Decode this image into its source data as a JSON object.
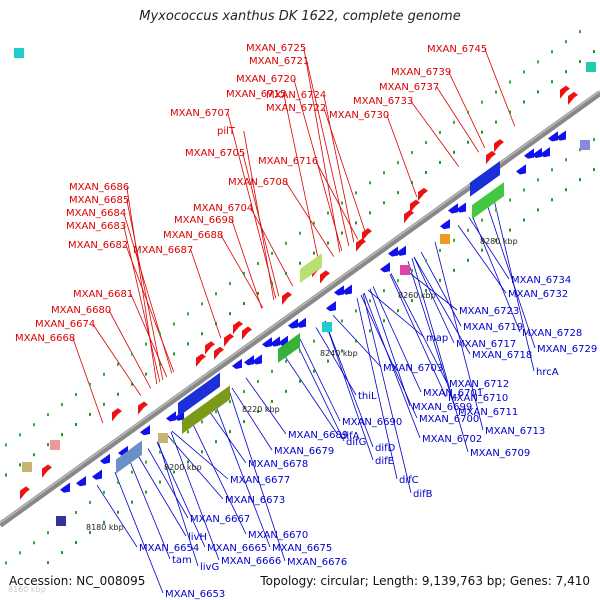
{
  "header": {
    "title": "Myxococcus xanthus DK 1622, complete genome"
  },
  "footer": {
    "accession": "Accession: NC_008095",
    "topology": "Topology: circular; Length: 9,139,763 bp; Genes: 7,410"
  },
  "scale": {
    "ticks": [
      "8180 kbp",
      "8200 kbp",
      "8220 kbp",
      "8240 kbp",
      "8260 kbp",
      "8280 kbp"
    ],
    "faded_tick": "8160 kbp"
  },
  "colors": {
    "forward_strand": "#ee1111",
    "reverse_strand": "#1111ee",
    "backbone": "#888888",
    "label_forward": "#dd0000",
    "label_reverse": "#0000cc"
  },
  "forward_labels": [
    "MXAN_6745",
    "MXAN_6739",
    "MXAN_6737",
    "MXAN_6733",
    "MXAN_6730",
    "MXAN_6725",
    "MXAN_6721",
    "MXAN_6720",
    "MXAN_6724",
    "MXAN_6715",
    "MXAN_6722",
    "MXAN_6707",
    "pilT",
    "MXAN_6705",
    "MXAN_6716",
    "MXAN_6708",
    "MXAN_6686",
    "MXAN_6685",
    "MXAN_6704",
    "MXAN_6684",
    "MXAN_6698",
    "MXAN_6683",
    "MXAN_6688",
    "MXAN_6682",
    "MXAN_6687",
    "MXAN_6681",
    "MXAN_6680",
    "MXAN_6674",
    "MXAN_6668"
  ],
  "reverse_labels": [
    "MXAN_6734",
    "MXAN_6732",
    "MXAN_6723",
    "MXAN_6719",
    "MXAN_6728",
    "map",
    "MXAN_6717",
    "MXAN_6729",
    "MXAN_6718",
    "hrcA",
    "MXAN_6703",
    "MXAN_6712",
    "thiL",
    "MXAN_6701",
    "MXAN_6710",
    "MXAN_6699",
    "MXAN_6711",
    "MXAN_6700",
    "MXAN_6690",
    "MXAN_6713",
    "difA",
    "MXAN_6689",
    "difG",
    "MXAN_6702",
    "MXAN_6679",
    "difD",
    "MXAN_6709",
    "MXAN_6678",
    "difE",
    "MXAN_6677",
    "difC",
    "difB",
    "MXAN_6673",
    "MXAN_6667",
    "livH",
    "MXAN_6670",
    "MXAN_6654",
    "MXAN_6665",
    "MXAN_6675",
    "tam",
    "MXAN_6666",
    "MXAN_6676",
    "livG",
    "MXAN_6653"
  ]
}
